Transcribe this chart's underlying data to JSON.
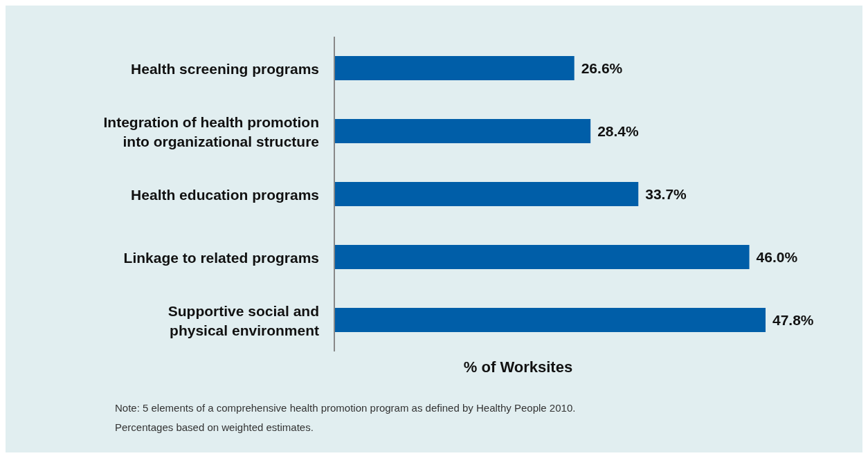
{
  "chart_data": {
    "type": "bar",
    "orientation": "horizontal",
    "xlabel": "% of Worksites",
    "categories": [
      "Health screening programs",
      "Integration of health promotion into organizational structure",
      "Health education programs",
      "Linkage to related programs",
      "Supportive social and physical environment"
    ],
    "values": [
      26.6,
      28.4,
      33.7,
      46.0,
      47.8
    ],
    "value_labels": [
      "26.6%",
      "28.4%",
      "33.7%",
      "46.0%",
      "47.8%"
    ],
    "color": "#005ea8",
    "tick_labels": "y",
    "annotations": [
      "Note: 5 elements of a comprehensive health promotion program as defined by Healthy People 2010.",
      "Percentages based on weighted estimates."
    ]
  }
}
